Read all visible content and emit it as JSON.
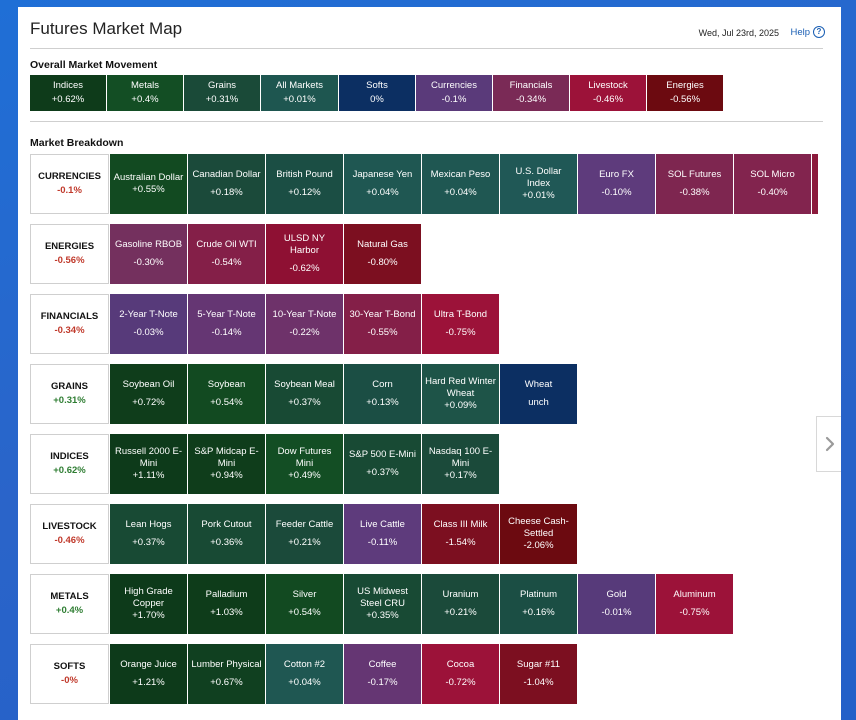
{
  "header": {
    "title": "Futures Market Map",
    "date": "Wed, Jul 23rd, 2025",
    "help_label": "Help"
  },
  "overall": {
    "title": "Overall Market Movement",
    "tiles": [
      {
        "label": "Indices",
        "value": "+0.62%",
        "color": "#0e3b1a"
      },
      {
        "label": "Metals",
        "value": "+0.4%",
        "color": "#134e24"
      },
      {
        "label": "Grains",
        "value": "+0.31%",
        "color": "#1a4a38"
      },
      {
        "label": "All Markets",
        "value": "+0.01%",
        "color": "#1e5650"
      },
      {
        "label": "Softs",
        "value": "0%",
        "color": "#0c2f62"
      },
      {
        "label": "Currencies",
        "value": "-0.1%",
        "color": "#5a3a7a"
      },
      {
        "label": "Financials",
        "value": "-0.34%",
        "color": "#7a2a56"
      },
      {
        "label": "Livestock",
        "value": "-0.46%",
        "color": "#9c1239"
      },
      {
        "label": "Energies",
        "value": "-0.56%",
        "color": "#6c0a10"
      }
    ]
  },
  "breakdown": {
    "title": "Market Breakdown",
    "rows": [
      {
        "name": "CURRENCIES",
        "value": "-0.1%",
        "up": false,
        "tiles": [
          {
            "label": "Australian Dollar",
            "value": "+0.55%",
            "color": "#124a21"
          },
          {
            "label": "Canadian Dollar",
            "value": "+0.18%",
            "color": "#1b4a3a"
          },
          {
            "label": "British Pound",
            "value": "+0.12%",
            "color": "#1b4e44"
          },
          {
            "label": "Japanese Yen",
            "value": "+0.04%",
            "color": "#1f5752"
          },
          {
            "label": "Mexican Peso",
            "value": "+0.04%",
            "color": "#1f5752"
          },
          {
            "label": "U.S. Dollar Index",
            "value": "+0.01%",
            "color": "#205856"
          },
          {
            "label": "Euro FX",
            "value": "-0.10%",
            "color": "#5e3b7c"
          },
          {
            "label": "SOL Futures",
            "value": "-0.38%",
            "color": "#7e2650"
          },
          {
            "label": "SOL Micro",
            "value": "-0.40%",
            "color": "#82244e"
          },
          {
            "label": "",
            "value": "",
            "color": "#8c1a3c"
          }
        ]
      },
      {
        "name": "ENERGIES",
        "value": "-0.56%",
        "up": false,
        "tiles": [
          {
            "label": "Gasoline RBOB",
            "value": "-0.30%",
            "color": "#74305e"
          },
          {
            "label": "Crude Oil WTI",
            "value": "-0.54%",
            "color": "#841f48"
          },
          {
            "label": "ULSD NY Harbor",
            "value": "-0.62%",
            "color": "#8e1033"
          },
          {
            "label": "Natural Gas",
            "value": "-0.80%",
            "color": "#7c0f20"
          }
        ]
      },
      {
        "name": "FINANCIALS",
        "value": "-0.34%",
        "up": false,
        "tiles": [
          {
            "label": "2-Year T-Note",
            "value": "-0.03%",
            "color": "#573a7a"
          },
          {
            "label": "5-Year T-Note",
            "value": "-0.14%",
            "color": "#653673"
          },
          {
            "label": "10-Year T-Note",
            "value": "-0.22%",
            "color": "#6e326a"
          },
          {
            "label": "30-Year T-Bond",
            "value": "-0.55%",
            "color": "#841f48"
          },
          {
            "label": "Ultra T-Bond",
            "value": "-0.75%",
            "color": "#9c1239"
          }
        ]
      },
      {
        "name": "GRAINS",
        "value": "+0.31%",
        "up": true,
        "tiles": [
          {
            "label": "Soybean Oil",
            "value": "+0.72%",
            "color": "#0f3d1b"
          },
          {
            "label": "Soybean",
            "value": "+0.54%",
            "color": "#124a21"
          },
          {
            "label": "Soybean Meal",
            "value": "+0.37%",
            "color": "#184a34"
          },
          {
            "label": "Corn",
            "value": "+0.13%",
            "color": "#1b4e44"
          },
          {
            "label": "Hard Red Winter Wheat",
            "value": "+0.09%",
            "color": "#1e5448"
          },
          {
            "label": "Wheat",
            "value": "unch",
            "color": "#0c2f62"
          }
        ]
      },
      {
        "name": "INDICES",
        "value": "+0.62%",
        "up": true,
        "tiles": [
          {
            "label": "Russell 2000 E-Mini",
            "value": "+1.11%",
            "color": "#0d3a1a"
          },
          {
            "label": "S&P Midcap E-Mini",
            "value": "+0.94%",
            "color": "#0f3d1b"
          },
          {
            "label": "Dow Futures Mini",
            "value": "+0.49%",
            "color": "#134e24"
          },
          {
            "label": "S&P 500 E-Mini",
            "value": "+0.37%",
            "color": "#184a34"
          },
          {
            "label": "Nasdaq 100 E-Mini",
            "value": "+0.17%",
            "color": "#1b4a3a"
          }
        ]
      },
      {
        "name": "LIVESTOCK",
        "value": "-0.46%",
        "up": false,
        "tiles": [
          {
            "label": "Lean Hogs",
            "value": "+0.37%",
            "color": "#184a34"
          },
          {
            "label": "Pork Cutout",
            "value": "+0.36%",
            "color": "#184a34"
          },
          {
            "label": "Feeder Cattle",
            "value": "+0.21%",
            "color": "#1b4a3a"
          },
          {
            "label": "Live Cattle",
            "value": "-0.11%",
            "color": "#5e3b7c"
          },
          {
            "label": "Class III Milk",
            "value": "-1.54%",
            "color": "#7c0f20"
          },
          {
            "label": "Cheese Cash-Settled",
            "value": "-2.06%",
            "color": "#6c0a10"
          }
        ]
      },
      {
        "name": "METALS",
        "value": "+0.4%",
        "up": true,
        "tiles": [
          {
            "label": "High Grade Copper",
            "value": "+1.70%",
            "color": "#0d3a1a"
          },
          {
            "label": "Palladium",
            "value": "+1.03%",
            "color": "#0e3c1a"
          },
          {
            "label": "Silver",
            "value": "+0.54%",
            "color": "#124a21"
          },
          {
            "label": "US Midwest Steel CRU",
            "value": "+0.35%",
            "color": "#184a34"
          },
          {
            "label": "Uranium",
            "value": "+0.21%",
            "color": "#1b4a3a"
          },
          {
            "label": "Platinum",
            "value": "+0.16%",
            "color": "#1b4e44"
          },
          {
            "label": "Gold",
            "value": "-0.01%",
            "color": "#573a7a"
          },
          {
            "label": "Aluminum",
            "value": "-0.75%",
            "color": "#9c1239"
          }
        ]
      },
      {
        "name": "SOFTS",
        "value": "-0%",
        "up": false,
        "tiles": [
          {
            "label": "Orange Juice",
            "value": "+1.21%",
            "color": "#0d3a1a"
          },
          {
            "label": "Lumber Physical",
            "value": "+0.67%",
            "color": "#104020"
          },
          {
            "label": "Cotton #2",
            "value": "+0.04%",
            "color": "#1f5752"
          },
          {
            "label": "Coffee",
            "value": "-0.17%",
            "color": "#653673"
          },
          {
            "label": "Cocoa",
            "value": "-0.72%",
            "color": "#9c1239"
          },
          {
            "label": "Sugar #11",
            "value": "-1.04%",
            "color": "#7c0f20"
          }
        ]
      }
    ]
  },
  "icons": {
    "help": "question-circle-icon",
    "next": "chevron-right-icon"
  }
}
